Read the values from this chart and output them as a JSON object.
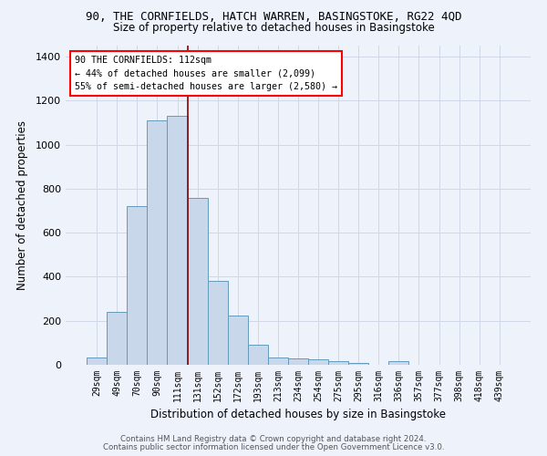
{
  "title": "90, THE CORNFIELDS, HATCH WARREN, BASINGSTOKE, RG22 4QD",
  "subtitle": "Size of property relative to detached houses in Basingstoke",
  "xlabel": "Distribution of detached houses by size in Basingstoke",
  "ylabel": "Number of detached properties",
  "categories": [
    "29sqm",
    "49sqm",
    "70sqm",
    "90sqm",
    "111sqm",
    "131sqm",
    "152sqm",
    "172sqm",
    "193sqm",
    "213sqm",
    "234sqm",
    "254sqm",
    "275sqm",
    "295sqm",
    "316sqm",
    "336sqm",
    "357sqm",
    "377sqm",
    "398sqm",
    "418sqm",
    "439sqm"
  ],
  "values": [
    35,
    240,
    720,
    1110,
    1130,
    760,
    380,
    225,
    90,
    35,
    27,
    25,
    18,
    10,
    0,
    15,
    0,
    0,
    0,
    0,
    0
  ],
  "bar_color": "#c8d8ea",
  "bar_edge_color": "#6699bb",
  "background_color": "#eef2fa",
  "grid_color": "#d0d8e8",
  "property_line_x": 4.5,
  "annotation_text_line1": "90 THE CORNFIELDS: 112sqm",
  "annotation_text_line2": "← 44% of detached houses are smaller (2,099)",
  "annotation_text_line3": "55% of semi-detached houses are larger (2,580) →",
  "footnote1": "Contains HM Land Registry data © Crown copyright and database right 2024.",
  "footnote2": "Contains public sector information licensed under the Open Government Licence v3.0.",
  "ylim": [
    0,
    1450
  ],
  "yticks": [
    0,
    200,
    400,
    600,
    800,
    1000,
    1200,
    1400
  ]
}
